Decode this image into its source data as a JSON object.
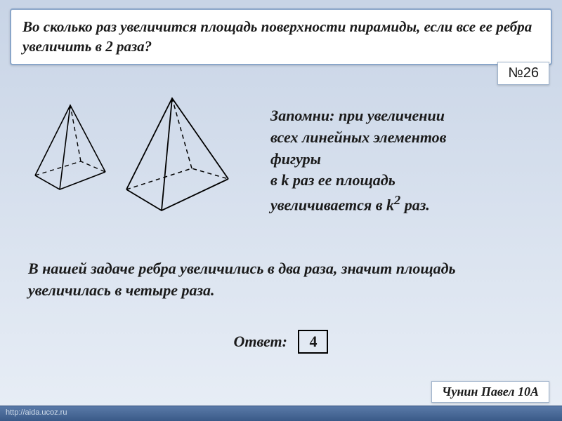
{
  "question": "Во сколько раз увеличится площадь поверхности пирамиды, если все ее ребра увеличить в 2 раза?",
  "slide_number": "№26",
  "tip": {
    "line1": "Запомни: при увеличении",
    "line2": "всех линейных элементов",
    "line3": "фигуры",
    "line4_prefix": "в k раз ее площадь",
    "line5_prefix": "увеличивается в k",
    "line5_sup": "2",
    "line5_suffix": " раз."
  },
  "solution": "В нашей задаче ребра увеличились в два раза, значит площадь увеличилась в четыре раза.",
  "answer_label": "Ответ:",
  "answer_value": "4",
  "author": "Чунин Павел 10А",
  "footer_url": "http://aida.ucoz.ru",
  "figures": {
    "small_pyramid": {
      "solid_lines": "M20,120 L70,20 L120,115 M20,120 L55,140 L120,115 M55,140 L70,20",
      "dashed_lines": "M20,120 L85,100 L120,115 M85,100 L70,20",
      "stroke": "#000000",
      "stroke_width": 1.6
    },
    "large_pyramid": {
      "solid_lines": "M150,140 L215,10 L295,125 M150,140 L200,170 L295,125 M200,170 L215,10",
      "dashed_lines": "M150,140 L243,110 L295,125 M243,110 L215,10",
      "stroke": "#000000",
      "stroke_width": 1.8
    }
  },
  "colors": {
    "bg_top": "#c8d4e6",
    "bg_bottom": "#e8eef6",
    "box_border": "#8aa6c9",
    "box_bg": "#ffffff",
    "text": "#1a1a1a",
    "footer_top": "#5a7aa8",
    "footer_bottom": "#3a5a88"
  }
}
